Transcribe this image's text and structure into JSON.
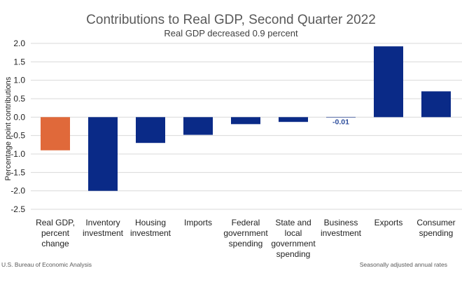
{
  "chart_data": {
    "type": "bar",
    "title": "Contributions to Real GDP, Second Quarter 2022",
    "subtitle": "Real GDP decreased 0.9 percent",
    "ylabel": "Percentage point contributions",
    "xlabel": "",
    "ylim": [
      -2.5,
      2.0
    ],
    "yticks": [
      "2.0",
      "1.5",
      "1.0",
      "0.5",
      "0.0",
      "-0.5",
      "-1.0",
      "-1.5",
      "-2.0",
      "-2.5"
    ],
    "ytick_values": [
      2.0,
      1.5,
      1.0,
      0.5,
      0.0,
      -0.5,
      -1.0,
      -1.5,
      -2.0,
      -2.5
    ],
    "grid": true,
    "legend": "none",
    "categories": [
      [
        "Real GDP,",
        "percent",
        "change"
      ],
      [
        "Inventory",
        "investment"
      ],
      [
        "Housing",
        "investment"
      ],
      [
        "Imports"
      ],
      [
        "Federal",
        "government",
        "spending"
      ],
      [
        "State and",
        "local",
        "government",
        "spending"
      ],
      [
        "Business",
        "investment"
      ],
      [
        "Exports"
      ],
      [
        "Consumer",
        "spending"
      ]
    ],
    "values": [
      -0.9,
      -2.0,
      -0.7,
      -0.48,
      -0.19,
      -0.13,
      -0.01,
      1.92,
      0.7
    ],
    "colors": [
      "#e0693a",
      "#0a2a87",
      "#0a2a87",
      "#0a2a87",
      "#0a2a87",
      "#0a2a87",
      "#0a2a87",
      "#0a2a87",
      "#0a2a87"
    ],
    "data_labels": [
      {
        "index": 6,
        "text": "-0.01",
        "color": "#2c4d9c"
      }
    ]
  },
  "footer": {
    "source": "U.S. Bureau of Economic Analysis",
    "note": "Seasonally adjusted annual rates"
  }
}
